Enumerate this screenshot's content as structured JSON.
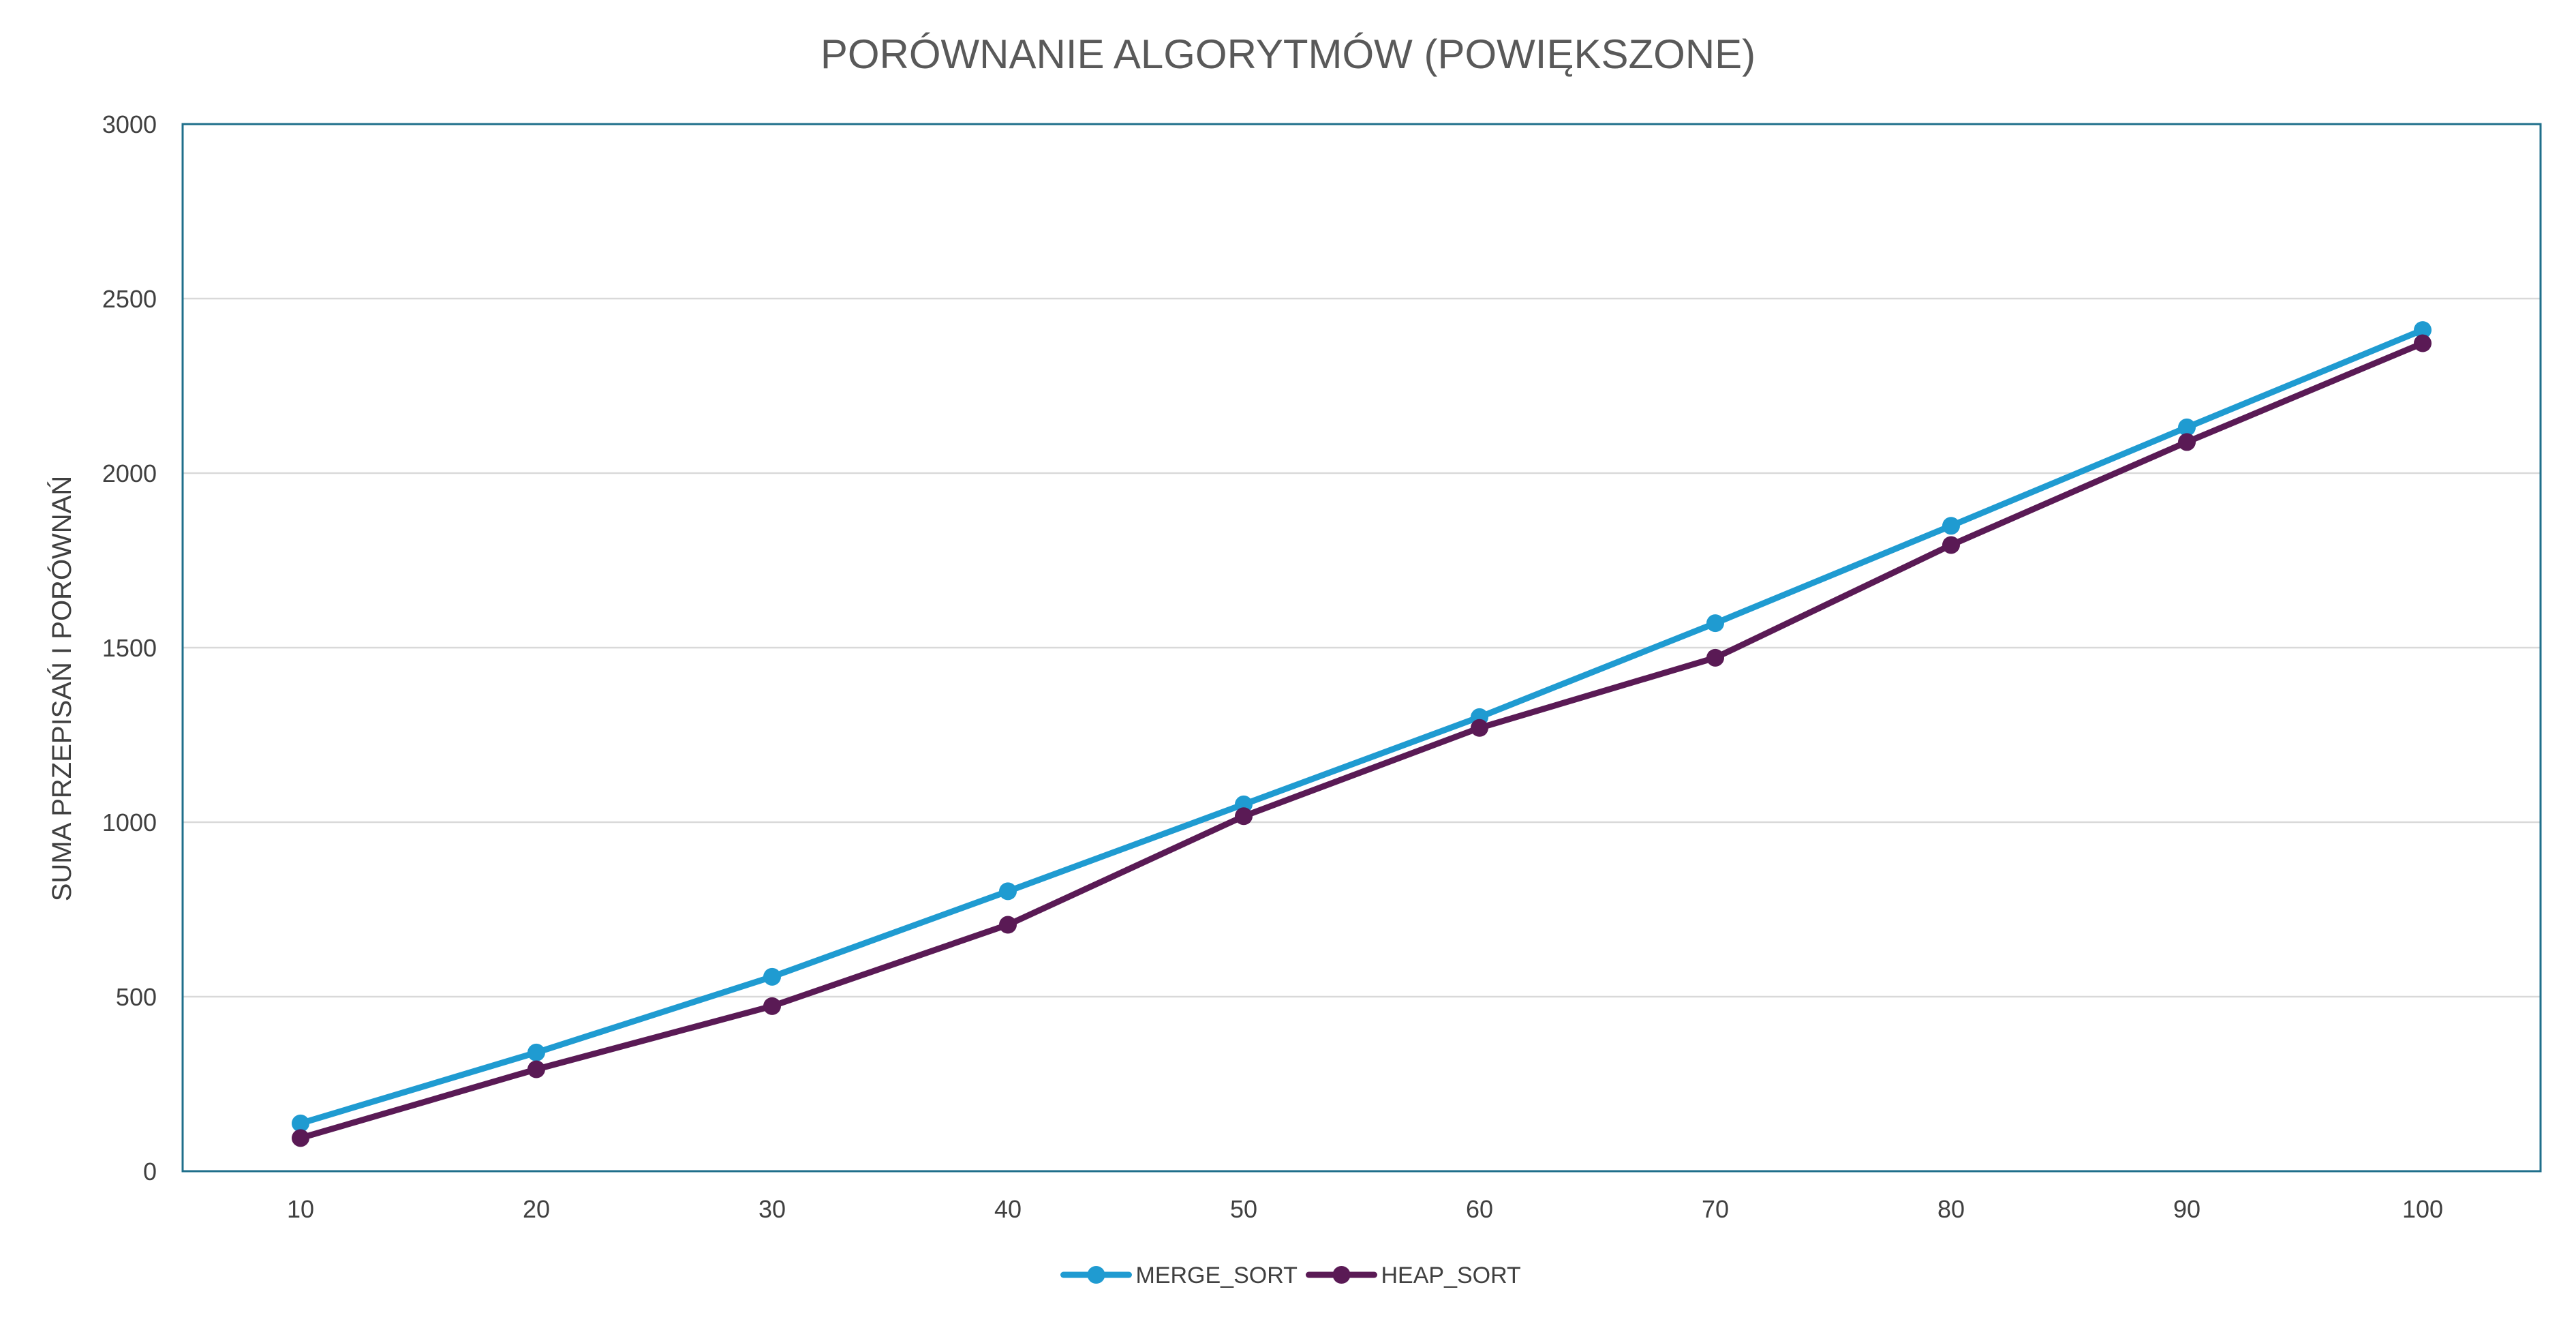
{
  "chart_data": {
    "type": "line",
    "title": "PORÓWNANIE ALGORYTMÓW (POWIĘKSZONE)",
    "xlabel": "",
    "ylabel": "SUMA PRZEPISAŃ I PORÓWNAŃ",
    "categories": [
      "10",
      "20",
      "30",
      "40",
      "50",
      "60",
      "70",
      "80",
      "90",
      "100"
    ],
    "ylim": [
      0,
      3000
    ],
    "yticks": [
      0,
      500,
      1000,
      1500,
      2000,
      2500,
      3000
    ],
    "grid": true,
    "legend": "bottom",
    "series": [
      {
        "name": "MERGE_SORT",
        "color": "#1f9bd1",
        "values": [
          137,
          340,
          557,
          802,
          1051,
          1301,
          1570,
          1849,
          2131,
          2410
        ]
      },
      {
        "name": "HEAP_SORT",
        "color": "#5a1a55",
        "values": [
          95,
          292,
          473,
          706,
          1017,
          1270,
          1471,
          1794,
          2089,
          2372
        ]
      }
    ]
  },
  "colors": {
    "plot_border": "#1f6f8b",
    "gridline": "#d9d9d9",
    "text": "#404040"
  }
}
